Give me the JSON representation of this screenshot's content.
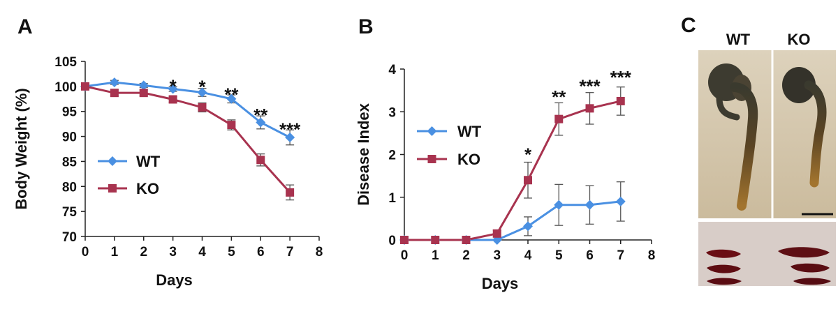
{
  "colors": {
    "wt": "#4a90e2",
    "ko": "#a8334f",
    "axis": "#222222",
    "error": "#555555"
  },
  "chart_data": [
    {
      "panel": "A",
      "type": "line",
      "xlabel": "Days",
      "ylabel": "Body Weight (%)",
      "xlim": [
        0,
        8
      ],
      "ylim": [
        70,
        105
      ],
      "xticks": [
        "0",
        "1",
        "2",
        "3",
        "4",
        "5",
        "6",
        "7",
        "8"
      ],
      "yticks": [
        "70",
        "75",
        "80",
        "85",
        "90",
        "95",
        "100",
        "105"
      ],
      "legend_position": "center-left",
      "series": [
        {
          "name": "WT",
          "marker": "diamond",
          "x": [
            0,
            1,
            2,
            3,
            4,
            5,
            6,
            7
          ],
          "values": [
            100,
            100.8,
            100.2,
            99.5,
            98.8,
            97.5,
            92.8,
            89.8
          ],
          "errors": [
            0,
            0.4,
            0.4,
            0.5,
            0.8,
            0.8,
            1.3,
            1.5
          ]
        },
        {
          "name": "KO",
          "marker": "square",
          "x": [
            0,
            1,
            2,
            3,
            4,
            5,
            6,
            7
          ],
          "values": [
            100,
            98.7,
            98.7,
            97.4,
            95.8,
            92.3,
            85.3,
            78.8
          ],
          "errors": [
            0,
            0.6,
            0.6,
            0.6,
            0.9,
            1.0,
            1.2,
            1.5
          ]
        }
      ],
      "annotations": [
        {
          "x": 3,
          "text": "*",
          "y": 100.5
        },
        {
          "x": 4,
          "text": "*",
          "y": 100.3
        },
        {
          "x": 5,
          "text": "**",
          "y": 98.8
        },
        {
          "x": 6,
          "text": "**",
          "y": 94.7
        },
        {
          "x": 7,
          "text": "***",
          "y": 91.8
        }
      ]
    },
    {
      "panel": "B",
      "type": "line",
      "xlabel": "Days",
      "ylabel": "Disease  Index",
      "xlim": [
        0,
        8
      ],
      "ylim": [
        0,
        4
      ],
      "xticks": [
        "0",
        "1",
        "2",
        "3",
        "4",
        "5",
        "6",
        "7",
        "8"
      ],
      "yticks": [
        "0",
        "1",
        "2",
        "3",
        "4"
      ],
      "legend_position": "center-left",
      "series": [
        {
          "name": "WT",
          "marker": "diamond",
          "x": [
            0,
            1,
            2,
            3,
            4,
            5,
            6,
            7
          ],
          "values": [
            0,
            0,
            0,
            0,
            0.32,
            0.82,
            0.82,
            0.9
          ],
          "errors": [
            0,
            0,
            0,
            0,
            0.22,
            0.48,
            0.45,
            0.46
          ]
        },
        {
          "name": "KO",
          "marker": "square",
          "x": [
            0,
            1,
            2,
            3,
            4,
            5,
            6,
            7
          ],
          "values": [
            0,
            0,
            0,
            0.15,
            1.4,
            2.83,
            3.08,
            3.25
          ],
          "errors": [
            0,
            0,
            0,
            0.08,
            0.42,
            0.38,
            0.37,
            0.33
          ]
        }
      ],
      "annotations": [
        {
          "x": 4,
          "text": "*",
          "y": 2.05
        },
        {
          "x": 5,
          "text": "**",
          "y": 3.4
        },
        {
          "x": 6,
          "text": "***",
          "y": 3.65
        },
        {
          "x": 7,
          "text": "***",
          "y": 3.85
        }
      ]
    }
  ],
  "panel_c": {
    "letter": "C",
    "wt_label": "WT",
    "ko_label": "KO"
  }
}
